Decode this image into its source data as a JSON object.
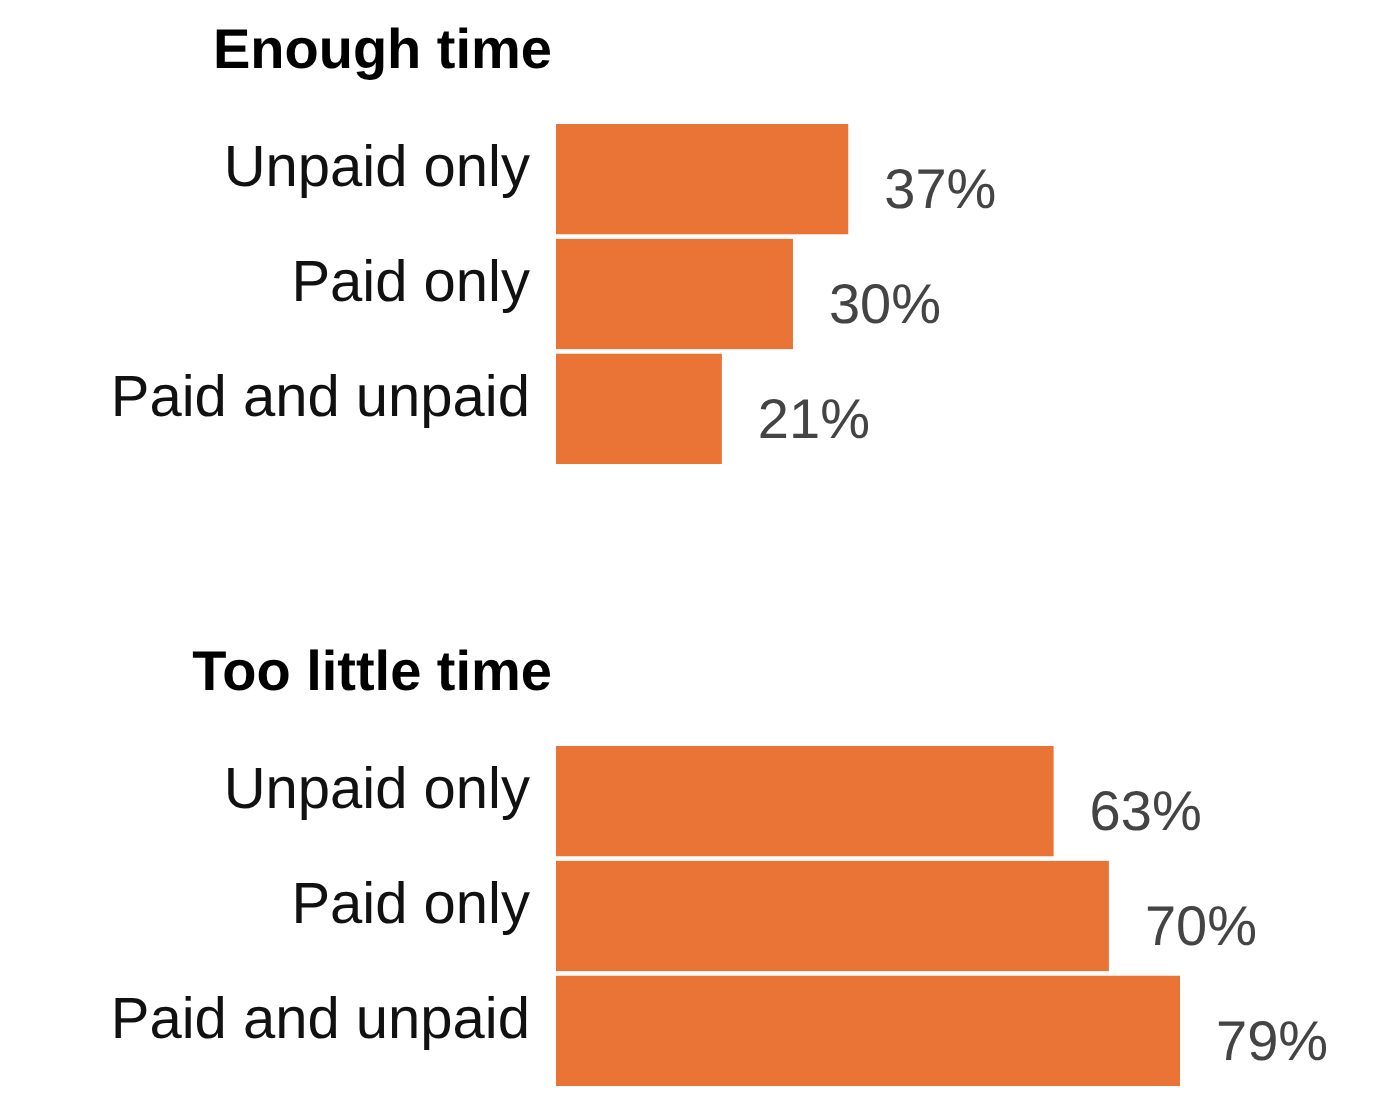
{
  "chart_data": [
    {
      "type": "bar",
      "orientation": "horizontal",
      "title": "Enough time",
      "categories": [
        "Unpaid only",
        "Paid only",
        "Paid and unpaid"
      ],
      "values": [
        37,
        30,
        21
      ],
      "value_labels": [
        "37%",
        "30%",
        "21%"
      ],
      "color": "#e97435"
    },
    {
      "type": "bar",
      "orientation": "horizontal",
      "title": "Too little time",
      "categories": [
        "Unpaid only",
        "Paid only",
        "Paid and unpaid"
      ],
      "values": [
        63,
        70,
        79
      ],
      "value_labels": [
        "63%",
        "70%",
        "79%"
      ],
      "color": "#e97435"
    }
  ]
}
